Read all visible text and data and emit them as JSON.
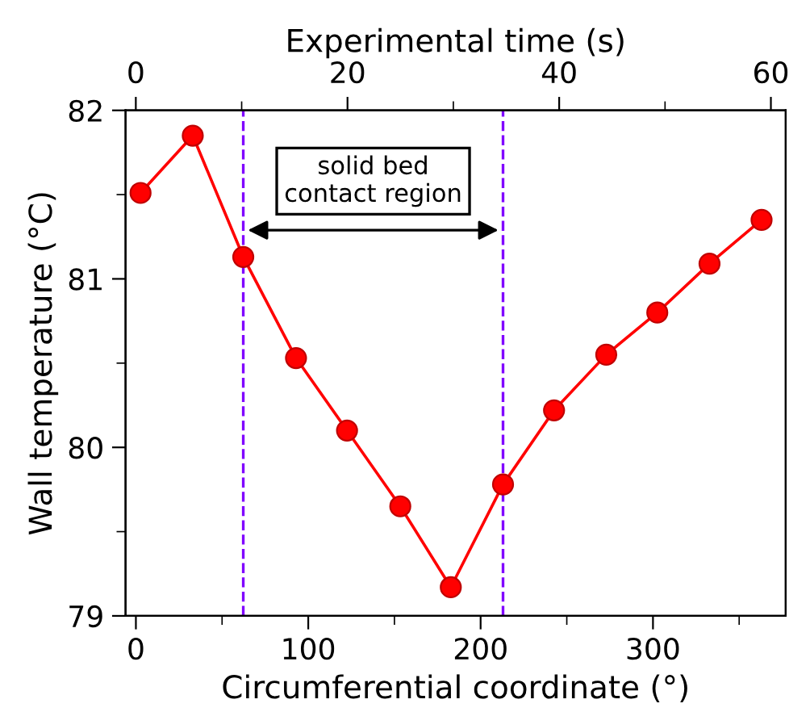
{
  "chart_data": {
    "type": "line",
    "xlabel": "Circumferential coordinate (°)",
    "ylabel": "Wall temperature (°C)",
    "x2label": "Experimental time (s)",
    "x": [
      2.7,
      33,
      62.3,
      92.9,
      122.5,
      153.4,
      182.7,
      213,
      242.6,
      272.9,
      302.5,
      332.8,
      363
    ],
    "series": [
      {
        "color": "#ff0000",
        "values": [
          81.51,
          81.85,
          81.13,
          80.53,
          80.1,
          79.65,
          79.17,
          79.78,
          80.22,
          80.55,
          80.8,
          81.09,
          81.35
        ]
      }
    ],
    "xlim": [
      -6,
      377
    ],
    "xticks": [
      0,
      100,
      200,
      300
    ],
    "ylim": [
      79,
      82
    ],
    "yticks": [
      79,
      80,
      81,
      82
    ],
    "x2lim": [
      -0.97,
      61.4
    ],
    "x2ticks": [
      0,
      20,
      40,
      60
    ],
    "ref_lines": [
      {
        "axis": "x",
        "value": 62.3,
        "color": "#8000ff",
        "line_style": "dashed"
      },
      {
        "axis": "x",
        "value": 213,
        "color": "#8000ff",
        "line_style": "dashed"
      }
    ],
    "annotations": [
      "solid bed\ncontact region"
    ],
    "marker": "circle",
    "line_style": "solid",
    "grid": false,
    "legend": false
  }
}
